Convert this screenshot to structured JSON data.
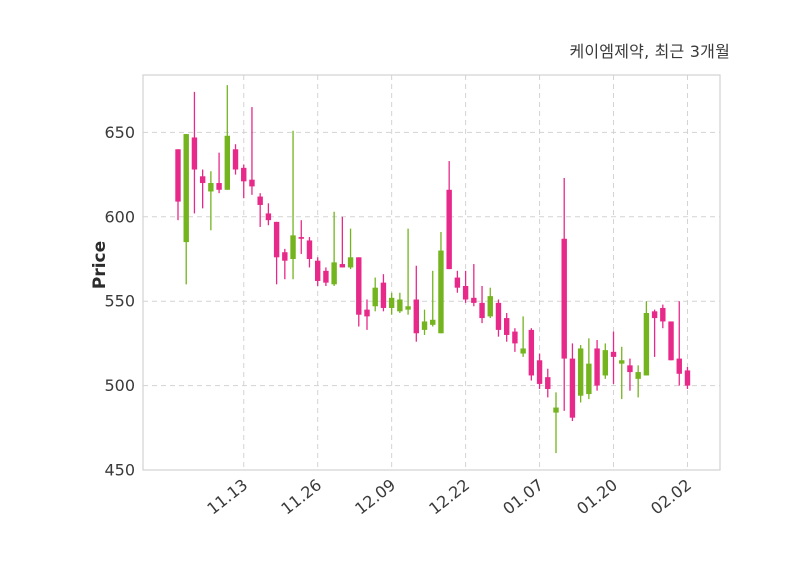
{
  "chart": {
    "title": "케이엠제약, 최근 3개월",
    "ylabel": "Price"
  },
  "chart_data": {
    "type": "candlestick",
    "title": "케이엠제약, 최근 3개월",
    "ylabel": "Price",
    "xlabel": "",
    "grid": true,
    "legend": "none",
    "y_ticks": [
      450,
      500,
      550,
      600,
      650
    ],
    "ylim": [
      450,
      684
    ],
    "x_tick_labels": [
      "11.13",
      "11.26",
      "12.09",
      "12.22",
      "01.07",
      "01.20",
      "02.02"
    ],
    "x_tick_indices": [
      8,
      17,
      26,
      35,
      44,
      53,
      62
    ],
    "colors": {
      "up": "#74B41F",
      "down": "#E7298A",
      "grid": "#d3d3d3",
      "spine": "#d3d3d3",
      "tick_text": "#3a3a3a",
      "background": "#ffffff"
    },
    "ohlc_note": "each candle is [open, high, low, close]; up candles green, down candles pink",
    "candles": [
      [
        640,
        640,
        598,
        609
      ],
      [
        585,
        649,
        560,
        649
      ],
      [
        647,
        674,
        602,
        628
      ],
      [
        624,
        628,
        605,
        620
      ],
      [
        615,
        627,
        592,
        620
      ],
      [
        620,
        638,
        614,
        616
      ],
      [
        616,
        678,
        616,
        648
      ],
      [
        640,
        643,
        625,
        628
      ],
      [
        629,
        631,
        611,
        621
      ],
      [
        622,
        665,
        613,
        618
      ],
      [
        612,
        614,
        594,
        607
      ],
      [
        602,
        608,
        595,
        598
      ],
      [
        597,
        597,
        560,
        576
      ],
      [
        579,
        581,
        563,
        574
      ],
      [
        575,
        651,
        563,
        589
      ],
      [
        588,
        598,
        578,
        587
      ],
      [
        586,
        588,
        570,
        575
      ],
      [
        574,
        576,
        559,
        562
      ],
      [
        568,
        570,
        559,
        561
      ],
      [
        560,
        603,
        559,
        573
      ],
      [
        572,
        600,
        570,
        570
      ],
      [
        570,
        593,
        569,
        576
      ],
      [
        576,
        576,
        535,
        542
      ],
      [
        545,
        551,
        533,
        541
      ],
      [
        547,
        564,
        544,
        558
      ],
      [
        561,
        566,
        544,
        546
      ],
      [
        546,
        555,
        542,
        552
      ],
      [
        544,
        555,
        543,
        551
      ],
      [
        545,
        593,
        542,
        547
      ],
      [
        551,
        571,
        526,
        531
      ],
      [
        533,
        545,
        530,
        538
      ],
      [
        536,
        568,
        535,
        539
      ],
      [
        531,
        591,
        531,
        580
      ],
      [
        616,
        633,
        569,
        569
      ],
      [
        564,
        568,
        555,
        558
      ],
      [
        559,
        568,
        549,
        551
      ],
      [
        552,
        572,
        547,
        549
      ],
      [
        549,
        559,
        537,
        540
      ],
      [
        541,
        558,
        540,
        553
      ],
      [
        549,
        551,
        529,
        533
      ],
      [
        540,
        543,
        526,
        530
      ],
      [
        532,
        534,
        520,
        525
      ],
      [
        519,
        541,
        517,
        522
      ],
      [
        533,
        534,
        503,
        506
      ],
      [
        515,
        519,
        498,
        501
      ],
      [
        505,
        510,
        493,
        498
      ],
      [
        484,
        496,
        460,
        487
      ],
      [
        587,
        623,
        485,
        516
      ],
      [
        516,
        525,
        479,
        481
      ],
      [
        494,
        524,
        490,
        522
      ],
      [
        495,
        528,
        492,
        513
      ],
      [
        522,
        527,
        497,
        500
      ],
      [
        506,
        525,
        504,
        521
      ],
      [
        520,
        532,
        501,
        517
      ],
      [
        513,
        523,
        492,
        515
      ],
      [
        512,
        516,
        497,
        508
      ],
      [
        504,
        512,
        493,
        508
      ],
      [
        506,
        550,
        506,
        543
      ],
      [
        544,
        545,
        517,
        540
      ],
      [
        546,
        548,
        534,
        538
      ],
      [
        538,
        538,
        515,
        515
      ],
      [
        516,
        550,
        500,
        507
      ],
      [
        509,
        511,
        498,
        500
      ]
    ]
  }
}
